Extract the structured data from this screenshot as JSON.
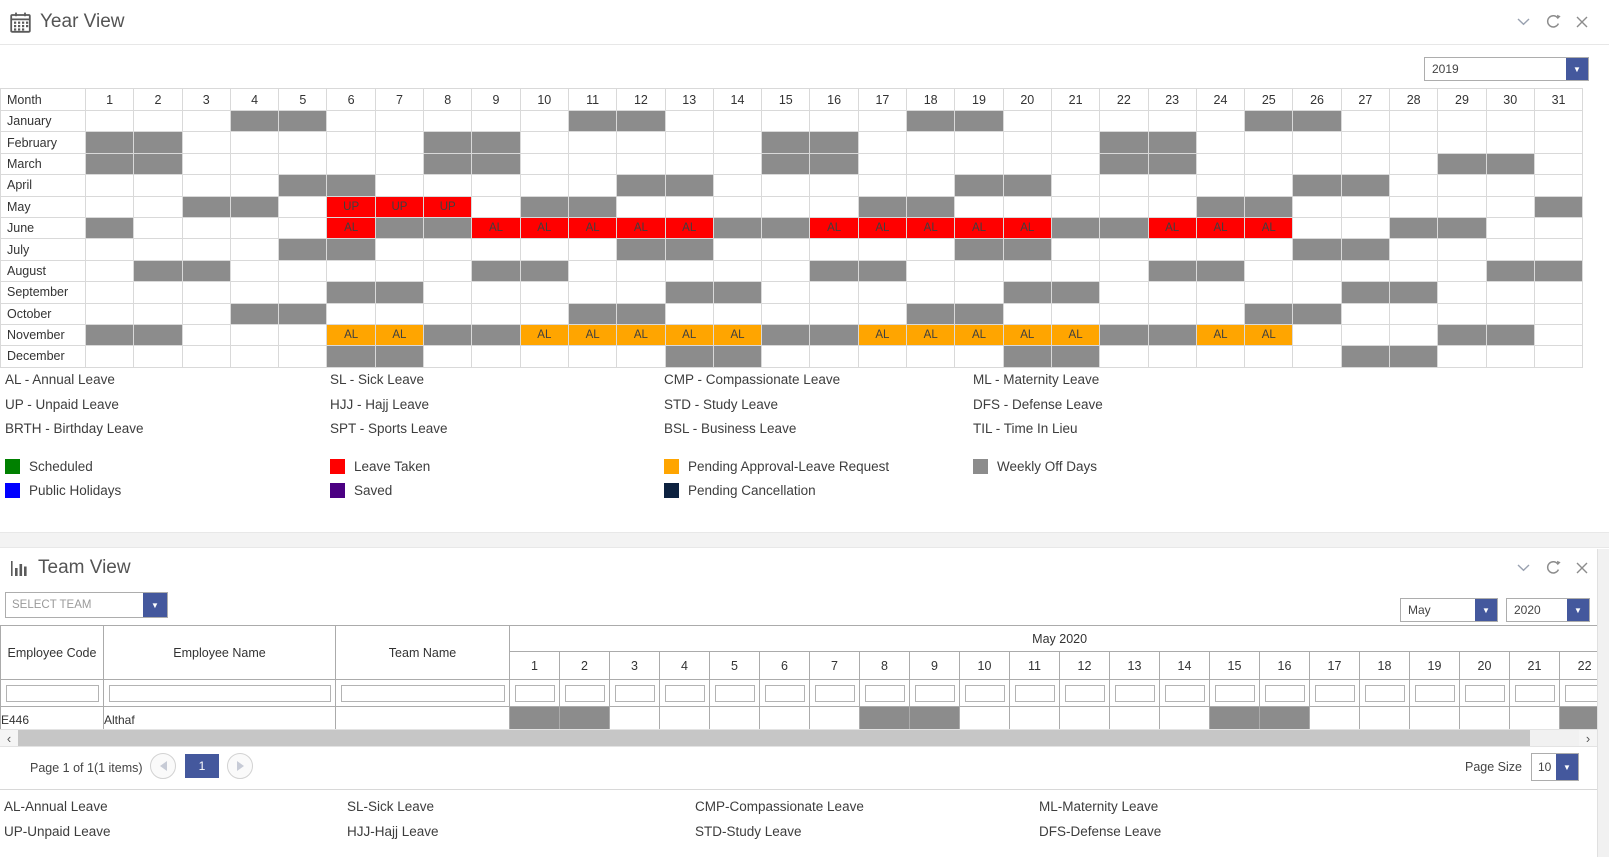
{
  "colors": {
    "accent_blue": "#44589D",
    "off_gray": "#8C8C8C",
    "leave_red": "#FF0000",
    "pending_orange": "#FFA500",
    "scheduled_green": "#008000",
    "holiday_blue": "#0000FF",
    "saved_purple": "#4B0082",
    "cancellation_navy": "#0D2240"
  },
  "year_view": {
    "title": "Year View",
    "year": "2019",
    "grid": {
      "corner_label": "Month",
      "day_count": 31,
      "months": [
        {
          "name": "January",
          "off": [
            4,
            5,
            11,
            12,
            18,
            19,
            25,
            26
          ],
          "leaves": []
        },
        {
          "name": "February",
          "off": [
            1,
            2,
            8,
            9,
            15,
            16,
            22,
            23
          ],
          "leaves": []
        },
        {
          "name": "March",
          "off": [
            1,
            2,
            8,
            9,
            15,
            16,
            22,
            23,
            29,
            30
          ],
          "leaves": []
        },
        {
          "name": "April",
          "off": [
            5,
            6,
            12,
            13,
            19,
            20,
            26,
            27
          ],
          "leaves": []
        },
        {
          "name": "May",
          "off": [
            3,
            4,
            10,
            11,
            17,
            18,
            24,
            25,
            31
          ],
          "leaves": [
            {
              "label": "UP",
              "status": "leave_taken",
              "days": [
                6,
                7,
                8
              ]
            }
          ]
        },
        {
          "name": "June",
          "off": [
            1,
            7,
            8,
            14,
            15,
            21,
            22,
            28,
            29
          ],
          "leaves": [
            {
              "label": "AL",
              "status": "leave_taken",
              "days": [
                6,
                9,
                10,
                11,
                12,
                13,
                16,
                17,
                18,
                19,
                20,
                23,
                24,
                25
              ]
            }
          ]
        },
        {
          "name": "July",
          "off": [
            5,
            6,
            12,
            13,
            19,
            20,
            26,
            27
          ],
          "leaves": []
        },
        {
          "name": "August",
          "off": [
            2,
            3,
            9,
            10,
            16,
            17,
            23,
            24,
            30,
            31
          ],
          "leaves": []
        },
        {
          "name": "September",
          "off": [
            6,
            7,
            13,
            14,
            20,
            21,
            27,
            28
          ],
          "leaves": []
        },
        {
          "name": "October",
          "off": [
            4,
            5,
            11,
            12,
            18,
            19,
            25,
            26
          ],
          "leaves": []
        },
        {
          "name": "November",
          "off": [
            1,
            2,
            8,
            9,
            15,
            16,
            22,
            23,
            29,
            30
          ],
          "leaves": [
            {
              "label": "AL",
              "status": "pending_approval",
              "days": [
                6,
                7,
                10,
                11,
                12,
                13,
                14,
                17,
                18,
                19,
                20,
                21,
                24,
                25
              ]
            }
          ]
        },
        {
          "name": "December",
          "off": [
            6,
            7,
            13,
            14,
            20,
            21,
            27,
            28
          ],
          "leaves": []
        }
      ]
    },
    "abbreviations": {
      "columns": [
        [
          "AL - Annual Leave",
          "UP - Unpaid Leave",
          "BRTH - Birthday Leave"
        ],
        [
          "SL - Sick Leave",
          "HJJ - Hajj Leave",
          "SPT - Sports Leave"
        ],
        [
          "CMP - Compassionate Leave",
          "STD - Study Leave",
          "BSL - Business Leave"
        ],
        [
          "ML - Maternity Leave",
          "DFS - Defense Leave",
          "TIL - Time In Lieu"
        ]
      ]
    },
    "status_legend": {
      "columns": [
        [
          {
            "label": "Scheduled",
            "color": "#008000"
          },
          {
            "label": "Public Holidays",
            "color": "#0000FF"
          }
        ],
        [
          {
            "label": "Leave Taken",
            "color": "#FF0000"
          },
          {
            "label": "Saved",
            "color": "#4B0082"
          }
        ],
        [
          {
            "label": "Pending Approval-Leave Request",
            "color": "#FFA500"
          },
          {
            "label": "Pending Cancellation",
            "color": "#0D2240"
          }
        ],
        [
          {
            "label": "Weekly Off Days",
            "color": "#8C8C8C"
          }
        ]
      ]
    }
  },
  "team_view": {
    "title": "Team View",
    "team_select": {
      "placeholder": "SELECT TEAM"
    },
    "month_select": "May",
    "year_select": "2020",
    "table": {
      "columns": [
        "Employee Code",
        "Employee Name",
        "Team Name"
      ],
      "group_header": "May 2020",
      "day_count": 22,
      "rows": [
        {
          "employee_code": "E446",
          "employee_name": "Althaf",
          "team_name": "",
          "off": [
            1,
            2,
            8,
            9,
            15,
            16,
            22
          ]
        }
      ]
    },
    "pager": {
      "status": "Page 1 of 1(1 items)",
      "current_page": "1",
      "page_size_label": "Page Size",
      "page_size": "10"
    }
  },
  "bottom_legend": {
    "columns": [
      [
        "AL-Annual Leave",
        "UP-Unpaid Leave"
      ],
      [
        "SL-Sick Leave",
        "HJJ-Hajj Leave"
      ],
      [
        "CMP-Compassionate Leave",
        "STD-Study Leave"
      ],
      [
        "ML-Maternity Leave",
        "DFS-Defense Leave"
      ]
    ]
  }
}
